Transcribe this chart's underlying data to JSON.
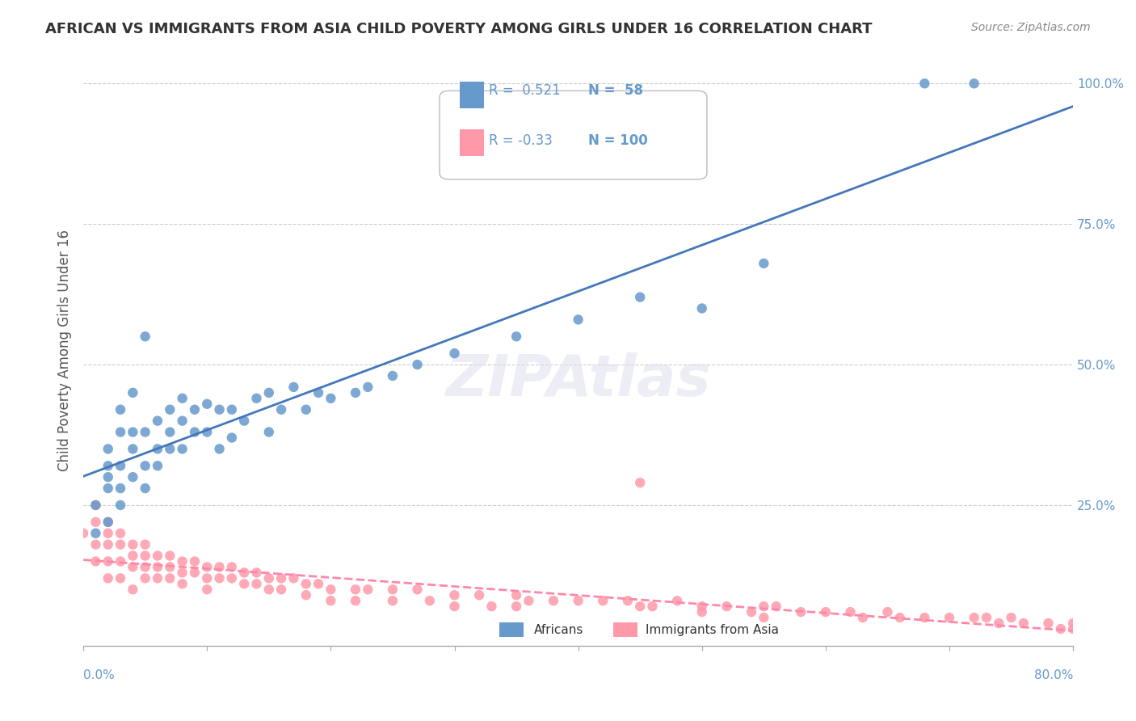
{
  "title": "AFRICAN VS IMMIGRANTS FROM ASIA CHILD POVERTY AMONG GIRLS UNDER 16 CORRELATION CHART",
  "source": "Source: ZipAtlas.com",
  "ylabel": "Child Poverty Among Girls Under 16",
  "watermark": "ZIPAtlas",
  "african_R": 0.521,
  "african_N": 58,
  "asian_R": -0.33,
  "asian_N": 100,
  "blue_color": "#6699CC",
  "pink_color": "#FF99AA",
  "blue_line_color": "#4477BB",
  "pink_line_color": "#FF88AA",
  "xlim": [
    0.0,
    0.8
  ],
  "ylim": [
    0.0,
    1.05
  ],
  "african_x": [
    0.01,
    0.01,
    0.02,
    0.02,
    0.02,
    0.02,
    0.02,
    0.03,
    0.03,
    0.03,
    0.03,
    0.03,
    0.04,
    0.04,
    0.04,
    0.04,
    0.05,
    0.05,
    0.05,
    0.05,
    0.06,
    0.06,
    0.06,
    0.07,
    0.07,
    0.07,
    0.08,
    0.08,
    0.08,
    0.09,
    0.09,
    0.1,
    0.1,
    0.11,
    0.11,
    0.12,
    0.12,
    0.13,
    0.14,
    0.15,
    0.15,
    0.16,
    0.17,
    0.18,
    0.19,
    0.2,
    0.22,
    0.23,
    0.25,
    0.27,
    0.3,
    0.35,
    0.4,
    0.45,
    0.5,
    0.55,
    0.68,
    0.72
  ],
  "african_y": [
    0.2,
    0.25,
    0.22,
    0.28,
    0.3,
    0.32,
    0.35,
    0.25,
    0.28,
    0.32,
    0.38,
    0.42,
    0.3,
    0.35,
    0.38,
    0.45,
    0.28,
    0.32,
    0.38,
    0.55,
    0.32,
    0.35,
    0.4,
    0.35,
    0.38,
    0.42,
    0.35,
    0.4,
    0.44,
    0.38,
    0.42,
    0.38,
    0.43,
    0.35,
    0.42,
    0.37,
    0.42,
    0.4,
    0.44,
    0.38,
    0.45,
    0.42,
    0.46,
    0.42,
    0.45,
    0.44,
    0.45,
    0.46,
    0.48,
    0.5,
    0.52,
    0.55,
    0.58,
    0.62,
    0.6,
    0.68,
    1.0,
    1.0
  ],
  "asian_x": [
    0.0,
    0.01,
    0.01,
    0.01,
    0.01,
    0.02,
    0.02,
    0.02,
    0.02,
    0.02,
    0.03,
    0.03,
    0.03,
    0.03,
    0.04,
    0.04,
    0.04,
    0.04,
    0.05,
    0.05,
    0.05,
    0.05,
    0.06,
    0.06,
    0.06,
    0.07,
    0.07,
    0.07,
    0.08,
    0.08,
    0.08,
    0.09,
    0.09,
    0.1,
    0.1,
    0.1,
    0.11,
    0.11,
    0.12,
    0.12,
    0.13,
    0.13,
    0.14,
    0.14,
    0.15,
    0.15,
    0.16,
    0.16,
    0.17,
    0.18,
    0.18,
    0.19,
    0.2,
    0.2,
    0.22,
    0.22,
    0.23,
    0.25,
    0.25,
    0.27,
    0.28,
    0.3,
    0.3,
    0.32,
    0.33,
    0.35,
    0.35,
    0.36,
    0.38,
    0.4,
    0.42,
    0.44,
    0.45,
    0.45,
    0.46,
    0.48,
    0.5,
    0.5,
    0.52,
    0.54,
    0.55,
    0.55,
    0.56,
    0.58,
    0.6,
    0.62,
    0.63,
    0.65,
    0.66,
    0.68,
    0.7,
    0.72,
    0.73,
    0.74,
    0.75,
    0.76,
    0.78,
    0.79,
    0.8,
    0.8
  ],
  "asian_y": [
    0.2,
    0.22,
    0.25,
    0.18,
    0.15,
    0.22,
    0.2,
    0.18,
    0.15,
    0.12,
    0.2,
    0.18,
    0.15,
    0.12,
    0.18,
    0.16,
    0.14,
    0.1,
    0.18,
    0.16,
    0.14,
    0.12,
    0.16,
    0.14,
    0.12,
    0.16,
    0.14,
    0.12,
    0.15,
    0.13,
    0.11,
    0.15,
    0.13,
    0.14,
    0.12,
    0.1,
    0.14,
    0.12,
    0.14,
    0.12,
    0.13,
    0.11,
    0.13,
    0.11,
    0.12,
    0.1,
    0.12,
    0.1,
    0.12,
    0.11,
    0.09,
    0.11,
    0.1,
    0.08,
    0.1,
    0.08,
    0.1,
    0.1,
    0.08,
    0.1,
    0.08,
    0.09,
    0.07,
    0.09,
    0.07,
    0.09,
    0.07,
    0.08,
    0.08,
    0.08,
    0.08,
    0.08,
    0.29,
    0.07,
    0.07,
    0.08,
    0.07,
    0.06,
    0.07,
    0.06,
    0.07,
    0.05,
    0.07,
    0.06,
    0.06,
    0.06,
    0.05,
    0.06,
    0.05,
    0.05,
    0.05,
    0.05,
    0.05,
    0.04,
    0.05,
    0.04,
    0.04,
    0.03,
    0.04,
    0.03
  ]
}
